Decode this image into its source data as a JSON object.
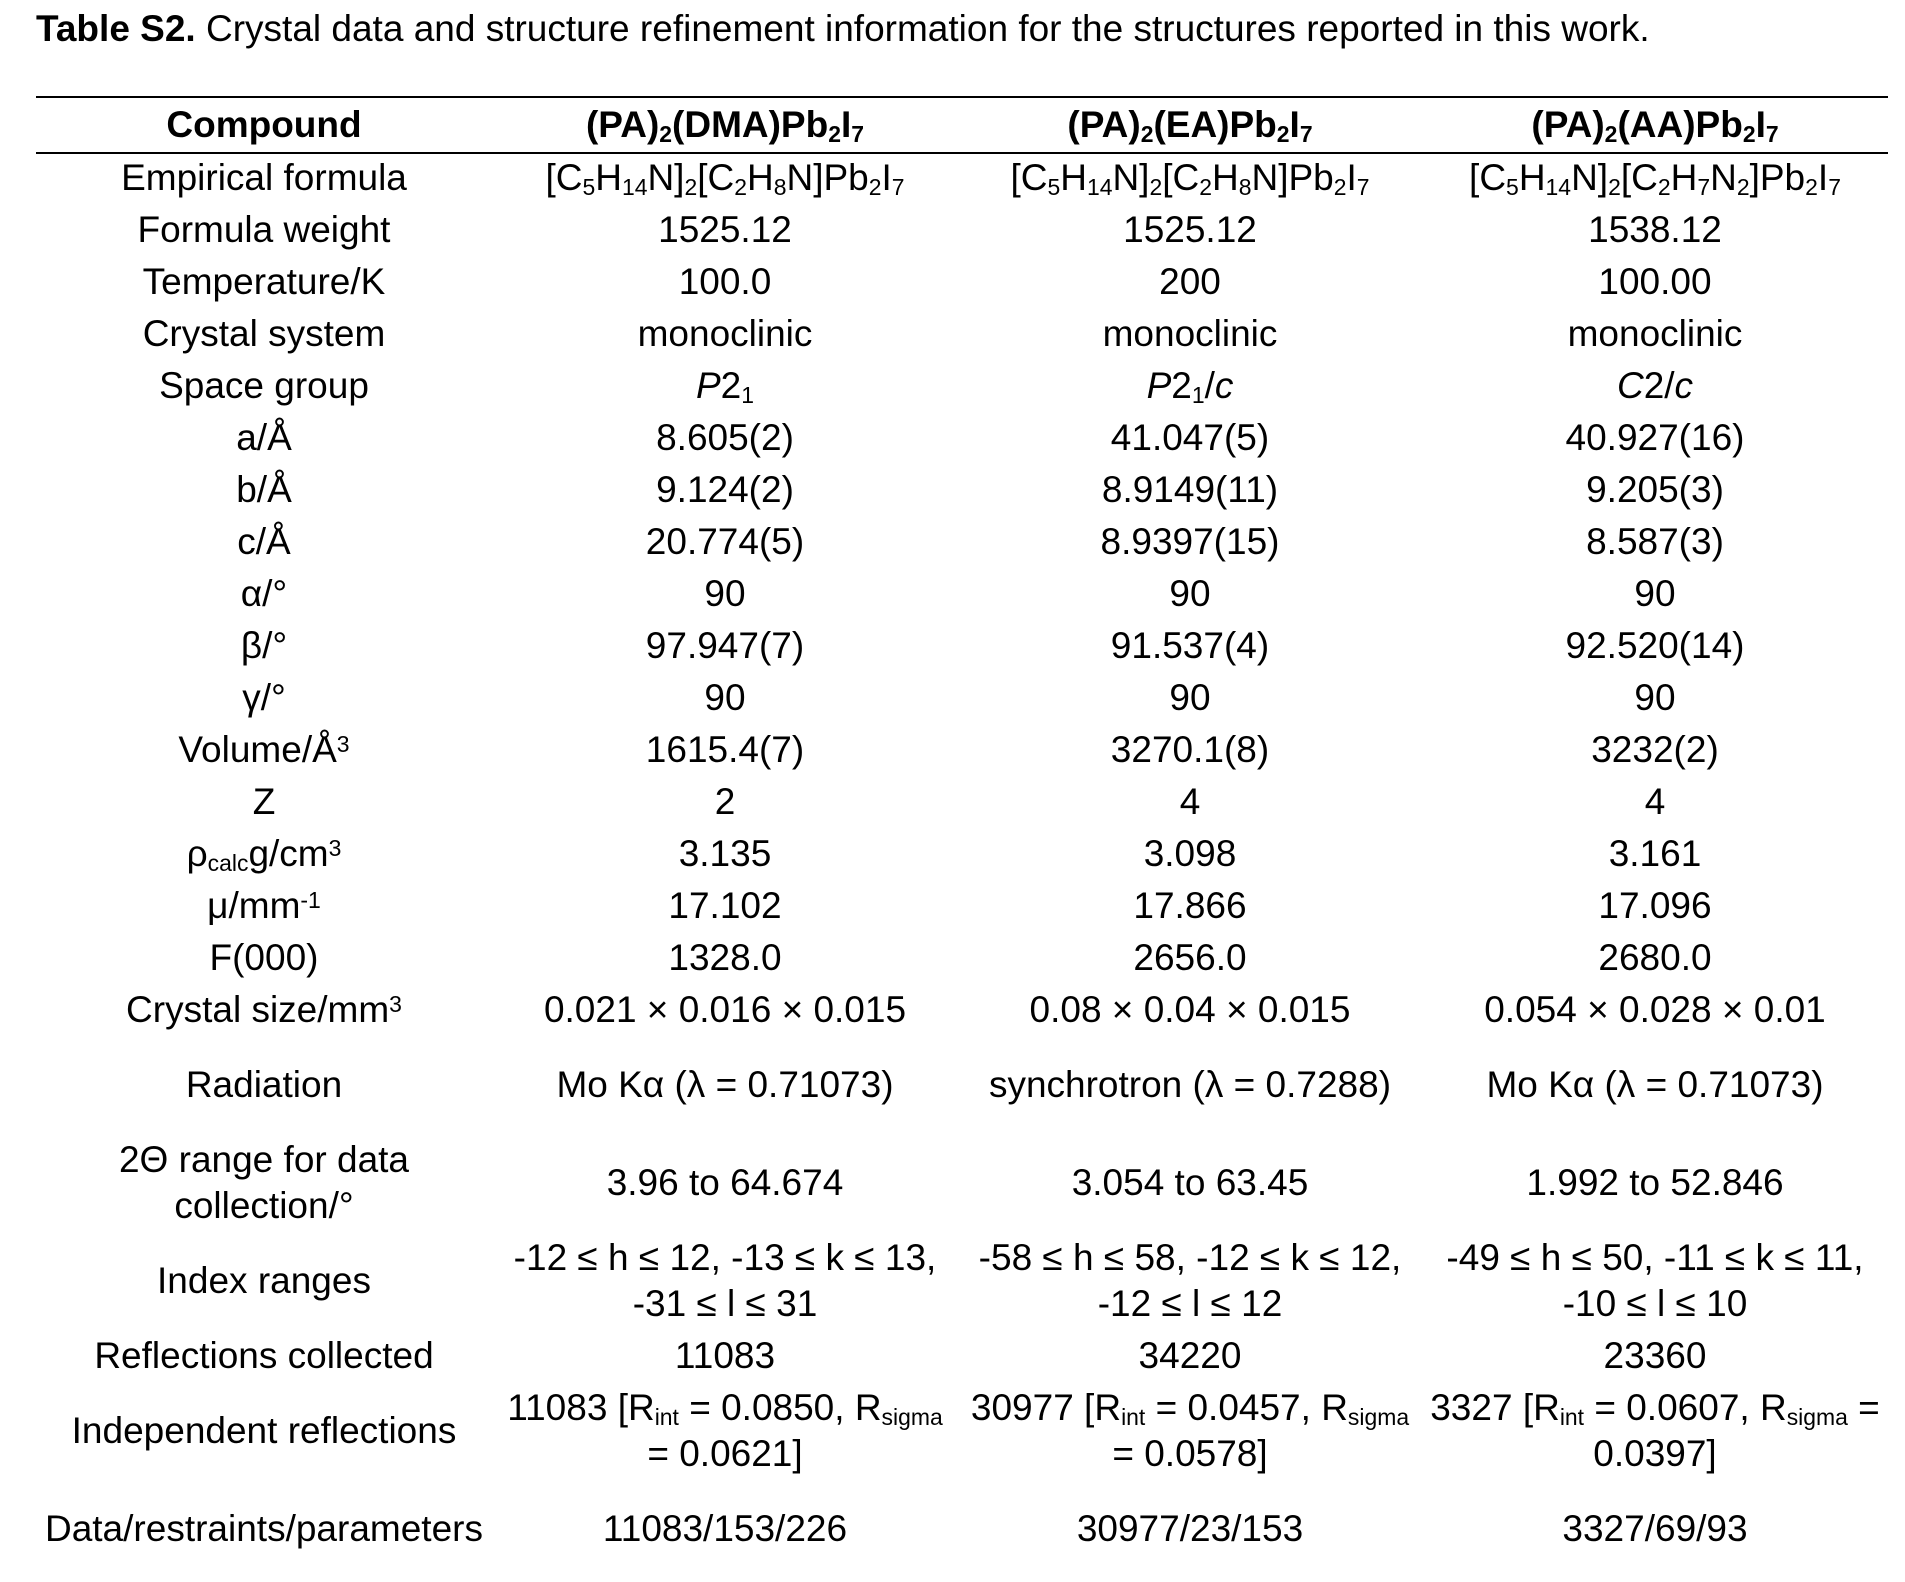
{
  "caption": {
    "label": "Table S2.",
    "text": " Crystal data and structure refinement information for the structures reported in this work."
  },
  "table": {
    "headers": [
      "Compound",
      "(PA)<sub>2</sub>(DMA)Pb<sub>2</sub>I<sub>7</sub>",
      "(PA)<sub>2</sub>(EA)Pb<sub>2</sub>I<sub>7</sub>",
      "(PA)<sub>2</sub>(AA)Pb<sub>2</sub>I<sub>7</sub>"
    ],
    "rows": [
      [
        "Empirical formula",
        "[C<sub>5</sub>H<sub>14</sub>N]<sub>2</sub>[C<sub>2</sub>H<sub>8</sub>N]Pb<sub>2</sub>I<sub>7</sub>",
        "[C<sub>5</sub>H<sub>14</sub>N]<sub>2</sub>[C<sub>2</sub>H<sub>8</sub>N]Pb<sub>2</sub>I<sub>7</sub>",
        "[C<sub>5</sub>H<sub>14</sub>N]<sub>2</sub>[C<sub>2</sub>H<sub>7</sub>N<sub>2</sub>]Pb<sub>2</sub>I<sub>7</sub>"
      ],
      [
        "Formula weight",
        "1525.12",
        "1525.12",
        "1538.12"
      ],
      [
        "Temperature/K",
        "100.0",
        "200",
        "100.00"
      ],
      [
        "Crystal system",
        "monoclinic",
        "monoclinic",
        "monoclinic"
      ],
      [
        "Space group",
        "<i>P</i>2<sub>1</sub>",
        "<i>P</i>2<sub>1</sub>/<i>c</i>",
        "<i>C</i>2/<i>c</i>"
      ],
      [
        "a/Å",
        "8.605(2)",
        "41.047(5)",
        "40.927(16)"
      ],
      [
        "b/Å",
        "9.124(2)",
        "8.9149(11)",
        "9.205(3)"
      ],
      [
        "c/Å",
        "20.774(5)",
        "8.9397(15)",
        "8.587(3)"
      ],
      [
        "α/°",
        "90",
        "90",
        "90"
      ],
      [
        "β/°",
        "97.947(7)",
        "91.537(4)",
        "92.520(14)"
      ],
      [
        "γ/°",
        "90",
        "90",
        "90"
      ],
      [
        "Volume/Å<sup>3</sup>",
        "1615.4(7)",
        "3270.1(8)",
        "3232(2)"
      ],
      [
        "Z",
        "2",
        "4",
        "4"
      ],
      [
        "ρ<sub>calc</sub>g/cm<sup>3</sup>",
        "3.135",
        "3.098",
        "3.161"
      ],
      [
        "μ/mm<sup>-1</sup>",
        "17.102",
        "17.866",
        "17.096"
      ],
      [
        "F(000)",
        "1328.0",
        "2656.0",
        "2680.0"
      ],
      [
        "Crystal size/mm<sup>3</sup>",
        "0.021 × 0.016 × 0.015",
        "0.08 × 0.04 × 0.015",
        "0.054 × 0.028 × 0.01"
      ],
      [
        "Radiation",
        "Mo Kα (λ = 0.71073)",
        "synchrotron (λ = 0.7288)",
        "Mo Kα (λ = 0.71073)"
      ],
      [
        "2Θ range for data collection/°",
        "3.96 to 64.674",
        "3.054 to 63.45",
        "1.992 to 52.846"
      ],
      [
        "Index ranges",
        "-12 ≤ h ≤ 12, -13 ≤ k ≤ 13, -31 ≤ l ≤ 31",
        "-58 ≤ h ≤ 58, -12 ≤ k ≤ 12, -12 ≤ l ≤ 12",
        "-49 ≤ h ≤ 50, -11 ≤ k ≤ 11, -10 ≤ l ≤ 10"
      ],
      [
        "Reflections collected",
        "11083",
        "34220",
        "23360"
      ],
      [
        "Independent reflections",
        "11083 [R<sub>int</sub> = 0.0850, R<sub>sigma</sub> = 0.0621]",
        "30977 [R<sub>int</sub> = 0.0457, R<sub>sigma</sub> = 0.0578]",
        "3327 [R<sub>int</sub> = 0.0607, R<sub>sigma</sub> = 0.0397]"
      ],
      [
        "Data/restraints/parameters",
        "11083/153/226",
        "30977/23/153",
        "3327/69/93"
      ]
    ]
  }
}
